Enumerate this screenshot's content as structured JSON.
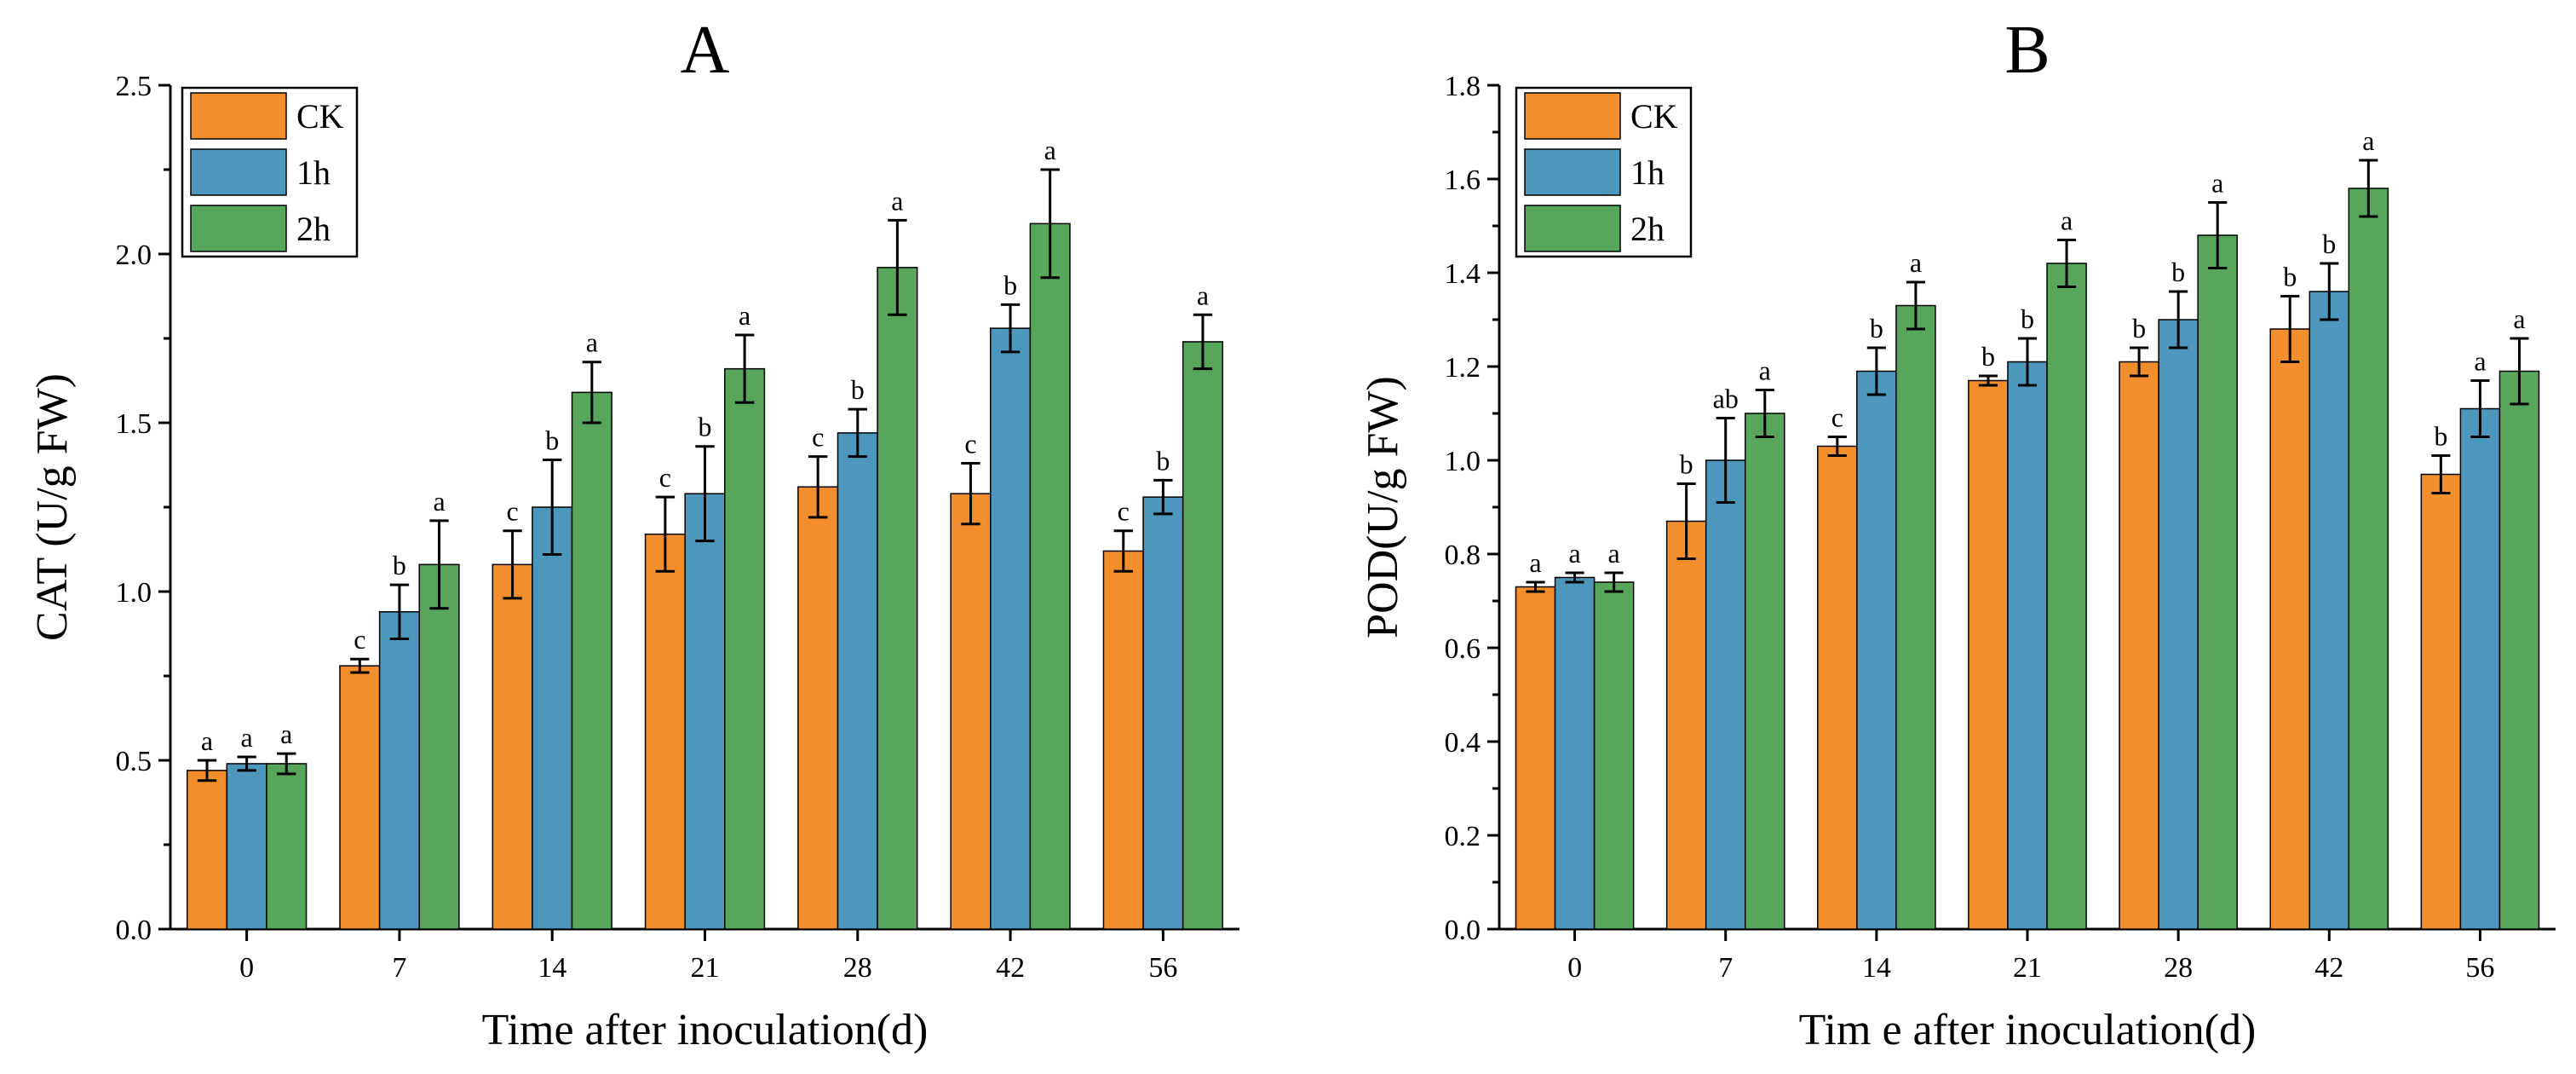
{
  "chart_data": [
    {
      "type": "bar",
      "title": "A",
      "xlabel": "Time after inoculation(d)",
      "ylabel": "CAT (U/g FW)",
      "categories": [
        "0",
        "7",
        "14",
        "21",
        "28",
        "42",
        "56"
      ],
      "ylim": [
        0,
        2.5
      ],
      "yticks": [
        "0.0",
        "0.5",
        "1.0",
        "1.5",
        "2.0",
        "2.5"
      ],
      "grid": false,
      "legend_position": "top-left",
      "series": [
        {
          "name": "CK",
          "color": "#F28E2B",
          "values": [
            0.47,
            0.78,
            1.08,
            1.17,
            1.31,
            1.29,
            1.12
          ],
          "errors": [
            0.03,
            0.02,
            0.1,
            0.11,
            0.09,
            0.09,
            0.06
          ],
          "sig": [
            "a",
            "c",
            "c",
            "c",
            "c",
            "c",
            "c"
          ]
        },
        {
          "name": "1h",
          "color": "#4E97BC",
          "values": [
            0.49,
            0.94,
            1.25,
            1.29,
            1.47,
            1.78,
            1.28
          ],
          "errors": [
            0.02,
            0.08,
            0.14,
            0.14,
            0.07,
            0.07,
            0.05
          ],
          "sig": [
            "a",
            "b",
            "b",
            "b",
            "b",
            "b",
            "b"
          ]
        },
        {
          "name": "2h",
          "color": "#58A65C",
          "values": [
            0.49,
            1.08,
            1.59,
            1.66,
            1.96,
            2.09,
            1.74
          ],
          "errors": [
            0.03,
            0.13,
            0.09,
            0.1,
            0.14,
            0.16,
            0.08
          ],
          "sig": [
            "a",
            "a",
            "a",
            "a",
            "a",
            "a",
            "a"
          ]
        }
      ]
    },
    {
      "type": "bar",
      "title": "B",
      "xlabel": "Tim e after inoculation(d)",
      "ylabel": "POD(U/g FW)",
      "categories": [
        "0",
        "7",
        "14",
        "21",
        "28",
        "42",
        "56"
      ],
      "ylim": [
        0,
        1.8
      ],
      "yticks": [
        "0.0",
        "0.2",
        "0.4",
        "0.6",
        "0.8",
        "1.0",
        "1.2",
        "1.4",
        "1.6",
        "1.8"
      ],
      "grid": false,
      "legend_position": "top-left",
      "series": [
        {
          "name": "CK",
          "color": "#F28E2B",
          "values": [
            0.73,
            0.87,
            1.03,
            1.17,
            1.21,
            1.28,
            0.97
          ],
          "errors": [
            0.01,
            0.08,
            0.02,
            0.01,
            0.03,
            0.07,
            0.04
          ],
          "sig": [
            "a",
            "b",
            "c",
            "b",
            "b",
            "b",
            "b"
          ]
        },
        {
          "name": "1h",
          "color": "#4E97BC",
          "values": [
            0.75,
            1.0,
            1.19,
            1.21,
            1.3,
            1.36,
            1.11
          ],
          "errors": [
            0.01,
            0.09,
            0.05,
            0.05,
            0.06,
            0.06,
            0.06
          ],
          "sig": [
            "a",
            "ab",
            "b",
            "b",
            "b",
            "b",
            "a"
          ]
        },
        {
          "name": "2h",
          "color": "#58A65C",
          "values": [
            0.74,
            1.1,
            1.33,
            1.42,
            1.48,
            1.58,
            1.19
          ],
          "errors": [
            0.02,
            0.05,
            0.05,
            0.05,
            0.07,
            0.06,
            0.07
          ],
          "sig": [
            "a",
            "a",
            "a",
            "a",
            "a",
            "a",
            "a"
          ]
        }
      ]
    }
  ]
}
